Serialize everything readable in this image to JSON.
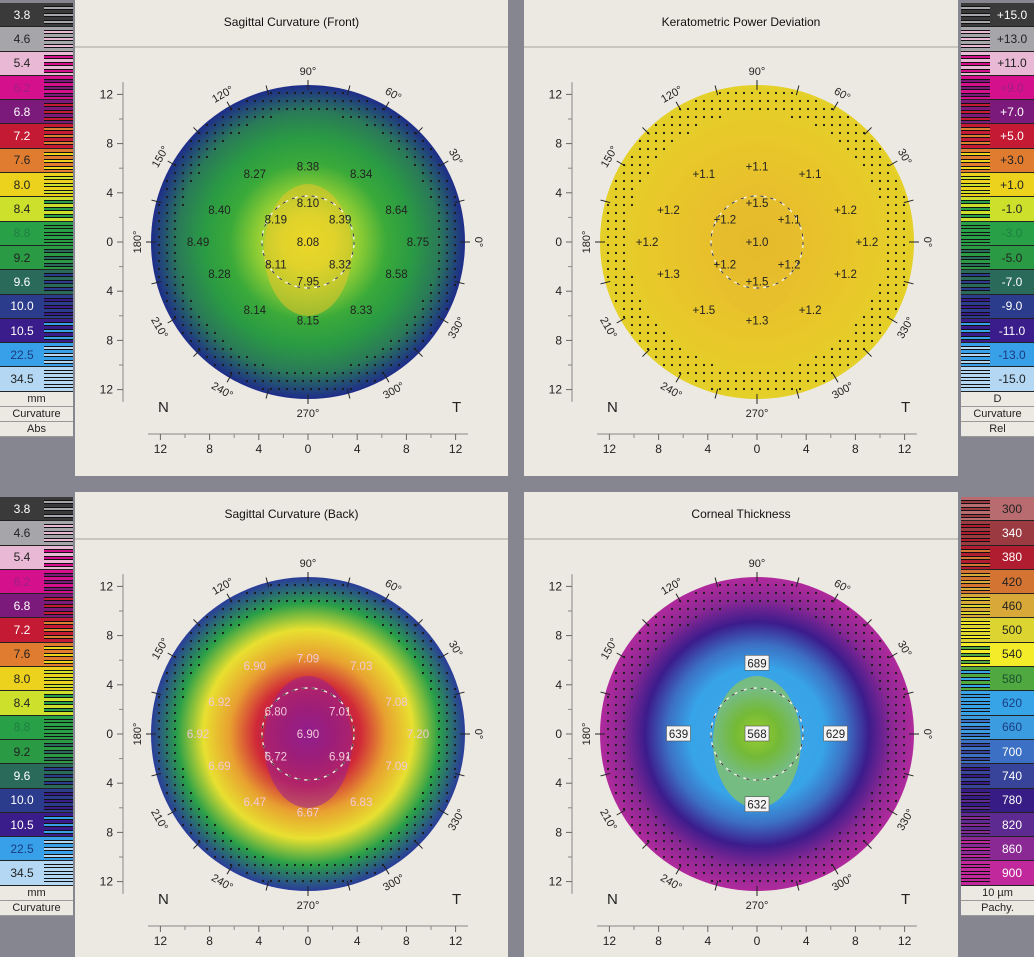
{
  "scales": {
    "curvature_abs": {
      "items": [
        {
          "label": "3.8",
          "color": "#3a3a3a",
          "text": "#ffffff"
        },
        {
          "label": "4.6",
          "color": "#a6a6aa",
          "text": "#222"
        },
        {
          "label": "5.4",
          "color": "#e8b8d4",
          "text": "#222"
        },
        {
          "label": "6.2",
          "color": "#d4108c",
          "text": "#a02080"
        },
        {
          "label": "6.8",
          "color": "#7c1a7c",
          "text": "#ffffff"
        },
        {
          "label": "7.2",
          "color": "#c41a34",
          "text": "#ffffff"
        },
        {
          "label": "7.6",
          "color": "#e07c30",
          "text": "#222"
        },
        {
          "label": "8.0",
          "color": "#ecd21c",
          "text": "#222"
        },
        {
          "label": "8.4",
          "color": "#cce02c",
          "text": "#222"
        },
        {
          "label": "8.8",
          "color": "#28a048",
          "text": "#1f8040"
        },
        {
          "label": "9.2",
          "color": "#2a9a44",
          "text": "#222"
        },
        {
          "label": "9.6",
          "color": "#2a6a5a",
          "text": "#ffffff"
        },
        {
          "label": "10.0",
          "color": "#2c3c8c",
          "text": "#ffffff"
        },
        {
          "label": "10.5",
          "color": "#3a1c8a",
          "text": "#ffffff"
        },
        {
          "label": "22.5",
          "color": "#38a0e8",
          "text": "#1a3c80"
        },
        {
          "label": "34.5",
          "color": "#b4d8f4",
          "text": "#222"
        }
      ],
      "footer": [
        "mm",
        "Curvature",
        "Abs"
      ]
    },
    "curvature_rel": {
      "items": [
        {
          "label": "+15.0",
          "color": "#3a3a3a",
          "text": "#ffffff"
        },
        {
          "label": "+13.0",
          "color": "#a6a6aa",
          "text": "#222"
        },
        {
          "label": "+11.0",
          "color": "#e8b8d4",
          "text": "#222"
        },
        {
          "label": "+9.0",
          "color": "#d4108c",
          "text": "#a02080"
        },
        {
          "label": "+7.0",
          "color": "#7c1a7c",
          "text": "#ffffff"
        },
        {
          "label": "+5.0",
          "color": "#c41a34",
          "text": "#ffffff"
        },
        {
          "label": "+3.0",
          "color": "#e07c30",
          "text": "#222"
        },
        {
          "label": "+1.0",
          "color": "#ecd21c",
          "text": "#222"
        },
        {
          "label": "-1.0",
          "color": "#cce02c",
          "text": "#222"
        },
        {
          "label": "-3.0",
          "color": "#28a048",
          "text": "#1f8040"
        },
        {
          "label": "-5.0",
          "color": "#2a9a44",
          "text": "#222"
        },
        {
          "label": "-7.0",
          "color": "#2a6a5a",
          "text": "#ffffff"
        },
        {
          "label": "-9.0",
          "color": "#2c3c8c",
          "text": "#ffffff"
        },
        {
          "label": "-11.0",
          "color": "#3a1c8a",
          "text": "#ffffff"
        },
        {
          "label": "-13.0",
          "color": "#38a0e8",
          "text": "#1a3c80"
        },
        {
          "label": "-15.0",
          "color": "#b4d8f4",
          "text": "#222"
        }
      ],
      "footer": [
        "D",
        "Curvature",
        "Rel"
      ]
    },
    "curvature_abs_back": {
      "footer": [
        "mm",
        "Curvature"
      ]
    },
    "pachy": {
      "items": [
        {
          "label": "300",
          "color": "#b86c70",
          "text": "#222"
        },
        {
          "label": "340",
          "color": "#9c3a42",
          "text": "#ffffff"
        },
        {
          "label": "380",
          "color": "#b01c30",
          "text": "#ffffff"
        },
        {
          "label": "420",
          "color": "#d47432",
          "text": "#222"
        },
        {
          "label": "460",
          "color": "#d8a838",
          "text": "#222"
        },
        {
          "label": "500",
          "color": "#dcd430",
          "text": "#222"
        },
        {
          "label": "540",
          "color": "#f4ec28",
          "text": "#222"
        },
        {
          "label": "580",
          "color": "#50a840",
          "text": "#1a5030"
        },
        {
          "label": "620",
          "color": "#38a4e8",
          "text": "#1a3c80"
        },
        {
          "label": "660",
          "color": "#3c9ce0",
          "text": "#1a3c80"
        },
        {
          "label": "700",
          "color": "#3c70c4",
          "text": "#ffffff"
        },
        {
          "label": "740",
          "color": "#38449a",
          "text": "#ffffff"
        },
        {
          "label": "780",
          "color": "#361c84",
          "text": "#ffffff"
        },
        {
          "label": "820",
          "color": "#5c2a90",
          "text": "#ffffff"
        },
        {
          "label": "860",
          "color": "#8a2894",
          "text": "#ffffff"
        },
        {
          "label": "900",
          "color": "#c0289c",
          "text": "#ffffff"
        }
      ],
      "footer": [
        "10 µm",
        "Pachy."
      ]
    }
  },
  "maps": [
    {
      "title": "Sagittal Curvature (Front)",
      "ring_colors": [
        "#1e2c8a",
        "#2a7a58",
        "#2a9a44",
        "#3aaa3a",
        "#8ccc34",
        "#d8e430",
        "#f0ec28"
      ],
      "center_tint": "#e8c428",
      "labels": [
        {
          "v": "8.38",
          "a": 90,
          "r": 0.48
        },
        {
          "v": "8.27",
          "a": 128,
          "r": 0.55
        },
        {
          "v": "8.34",
          "a": 52,
          "r": 0.55
        },
        {
          "v": "8.40",
          "a": 160,
          "r": 0.6
        },
        {
          "v": "8.64",
          "a": 20,
          "r": 0.6
        },
        {
          "v": "8.10",
          "a": 90,
          "r": 0.25
        },
        {
          "v": "8.19",
          "a": 145,
          "r": 0.25
        },
        {
          "v": "8.39",
          "a": 35,
          "r": 0.25
        },
        {
          "v": "8.49",
          "a": 180,
          "r": 0.7
        },
        {
          "v": "8.08",
          "a": 0,
          "r": 0
        },
        {
          "v": "8.75",
          "a": 0,
          "r": 0.7
        },
        {
          "v": "8.11",
          "a": 215,
          "r": 0.25
        },
        {
          "v": "8.32",
          "a": 325,
          "r": 0.25
        },
        {
          "v": "7.95",
          "a": 270,
          "r": 0.25
        },
        {
          "v": "8.28",
          "a": 200,
          "r": 0.6
        },
        {
          "v": "8.58",
          "a": 340,
          "r": 0.6
        },
        {
          "v": "8.14",
          "a": 232,
          "r": 0.55
        },
        {
          "v": "8.33",
          "a": 308,
          "r": 0.55
        },
        {
          "v": "8.15",
          "a": 270,
          "r": 0.5
        }
      ],
      "label_color": "#222"
    },
    {
      "title": "Keratometric Power Deviation",
      "ring_colors": [
        "#e4d028",
        "#e8c82a",
        "#e8c02c",
        "#e4b82e"
      ],
      "center_tint": "#e6bc2c",
      "labels": [
        {
          "v": "+1.1",
          "a": 90,
          "r": 0.48
        },
        {
          "v": "+1.1",
          "a": 128,
          "r": 0.55
        },
        {
          "v": "+1.1",
          "a": 52,
          "r": 0.55
        },
        {
          "v": "+1.2",
          "a": 160,
          "r": 0.6
        },
        {
          "v": "+1.2",
          "a": 20,
          "r": 0.6
        },
        {
          "v": "+1.5",
          "a": 90,
          "r": 0.25
        },
        {
          "v": "+1.2",
          "a": 145,
          "r": 0.25
        },
        {
          "v": "+1.1",
          "a": 35,
          "r": 0.25
        },
        {
          "v": "+1.2",
          "a": 180,
          "r": 0.7
        },
        {
          "v": "+1.0",
          "a": 0,
          "r": 0
        },
        {
          "v": "+1.2",
          "a": 0,
          "r": 0.7
        },
        {
          "v": "+1.2",
          "a": 215,
          "r": 0.25
        },
        {
          "v": "+1.2",
          "a": 325,
          "r": 0.25
        },
        {
          "v": "+1.5",
          "a": 270,
          "r": 0.25
        },
        {
          "v": "+1.3",
          "a": 200,
          "r": 0.6
        },
        {
          "v": "+1.2",
          "a": 340,
          "r": 0.6
        },
        {
          "v": "+1.5",
          "a": 232,
          "r": 0.55
        },
        {
          "v": "+1.2",
          "a": 308,
          "r": 0.55
        },
        {
          "v": "+1.3",
          "a": 270,
          "r": 0.5
        }
      ],
      "label_color": "#222"
    },
    {
      "title": "Sagittal Curvature (Back)",
      "ring_colors": [
        "#2a3c9a",
        "#2aa048",
        "#e8e030",
        "#e8a030",
        "#d02838",
        "#a01c5c",
        "#861c8a"
      ],
      "center_tint": "#9a2090",
      "labels": [
        {
          "v": "7.09",
          "a": 90,
          "r": 0.48
        },
        {
          "v": "6.90",
          "a": 128,
          "r": 0.55
        },
        {
          "v": "7.03",
          "a": 52,
          "r": 0.55
        },
        {
          "v": "6.92",
          "a": 160,
          "r": 0.6
        },
        {
          "v": "7.08",
          "a": 20,
          "r": 0.6
        },
        {
          "v": "6.80",
          "a": 145,
          "r": 0.25
        },
        {
          "v": "7.01",
          "a": 35,
          "r": 0.25
        },
        {
          "v": "6.92",
          "a": 180,
          "r": 0.7
        },
        {
          "v": "6.90",
          "a": 0,
          "r": 0
        },
        {
          "v": "7.20",
          "a": 0,
          "r": 0.7
        },
        {
          "v": "6.72",
          "a": 215,
          "r": 0.25
        },
        {
          "v": "6.91",
          "a": 325,
          "r": 0.25
        },
        {
          "v": "6.69",
          "a": 200,
          "r": 0.6
        },
        {
          "v": "7.09",
          "a": 340,
          "r": 0.6
        },
        {
          "v": "6.47",
          "a": 232,
          "r": 0.55
        },
        {
          "v": "6.83",
          "a": 308,
          "r": 0.55
        },
        {
          "v": "6.67",
          "a": 270,
          "r": 0.5
        }
      ],
      "label_color": "#f2c8d8"
    },
    {
      "title": "Corneal Thickness",
      "ring_colors": [
        "#b02a9c",
        "#8a2894",
        "#3c1c8c",
        "#3c70c4",
        "#38a4e8",
        "#3aa4e8",
        "#36a040",
        "#8cc838"
      ],
      "center_tint": "#a8d030",
      "labels": [
        {
          "v": "689",
          "a": 90,
          "r": 0.45
        },
        {
          "v": "639",
          "a": 180,
          "r": 0.5
        },
        {
          "v": "568",
          "a": 0,
          "r": 0
        },
        {
          "v": "629",
          "a": 0,
          "r": 0.5
        },
        {
          "v": "632",
          "a": 270,
          "r": 0.45
        }
      ],
      "label_color": "#222",
      "boxed": true
    }
  ],
  "axes": {
    "y_ticks": [
      "12",
      "8",
      "4",
      "0",
      "4",
      "8",
      "12"
    ],
    "x_ticks": [
      "12",
      "8",
      "4",
      "0",
      "4",
      "8",
      "12"
    ],
    "degrees": [
      "90°",
      "60°",
      "30°",
      "0°",
      "330°",
      "300°",
      "270°",
      "240°",
      "210°",
      "180°",
      "150°",
      "120°"
    ],
    "nasal": "N",
    "temporal": "T"
  }
}
